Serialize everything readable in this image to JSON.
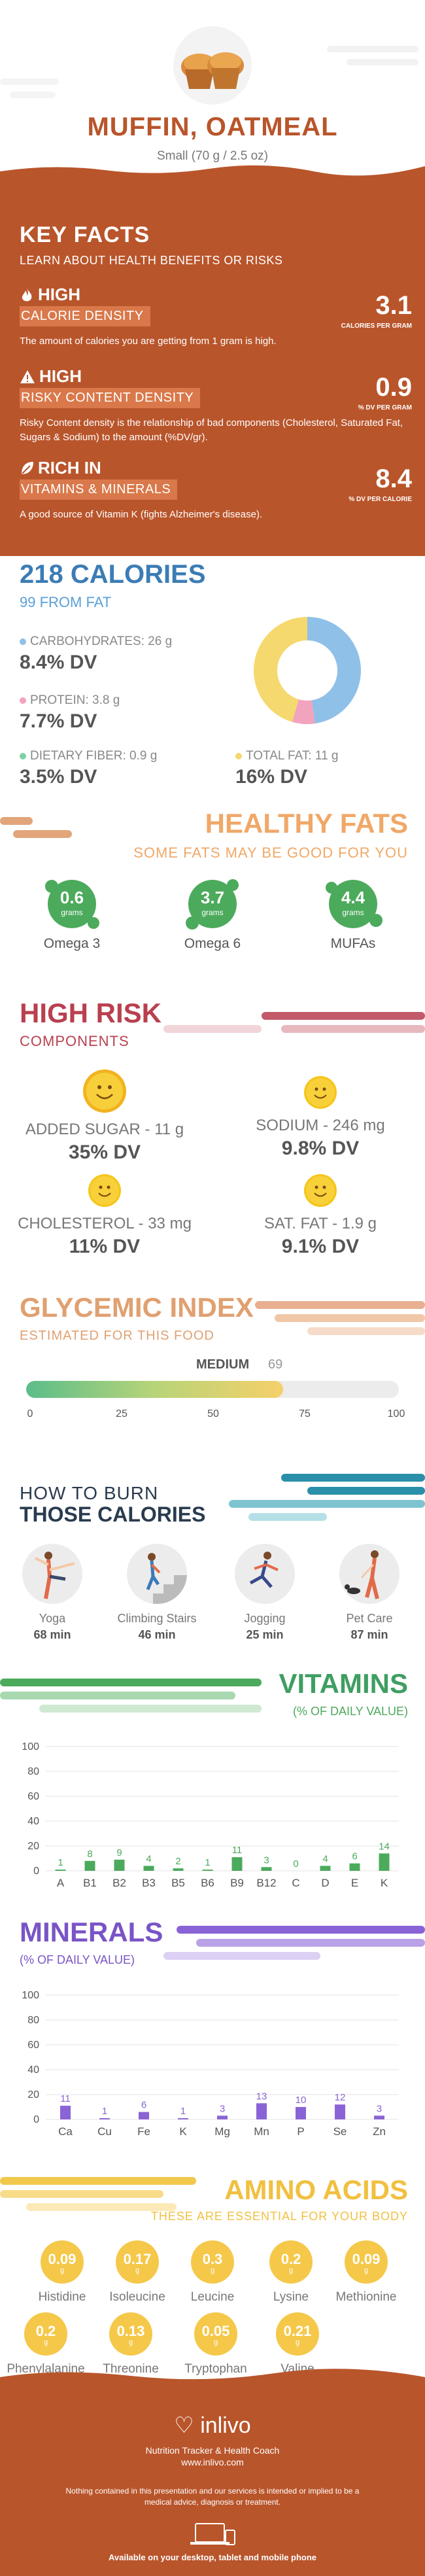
{
  "header": {
    "title": "MUFFIN, OATMEAL",
    "serving": "Small (70 g / 2.5 oz)",
    "image_icon": "muffin-image"
  },
  "key_facts": {
    "title": "KEY FACTS",
    "subtitle": "LEARN ABOUT HEALTH BENEFITS OR RISKS",
    "items": [
      {
        "icon": "flame-icon",
        "level": "HIGH",
        "label": "CALORIE DENSITY",
        "value": "3.1",
        "unit": "CALORIES PER GRAM",
        "desc": "The amount of calories you are getting from 1 gram is high."
      },
      {
        "icon": "warning-icon",
        "level": "HIGH",
        "label": "RISKY CONTENT DENSITY",
        "value": "0.9",
        "unit": "% DV PER GRAM",
        "desc": "Risky Content density is the relationship of bad components (Cholesterol, Saturated Fat, Sugars & Sodium) to the amount (%DV/gr)."
      },
      {
        "icon": "leaf-icon",
        "level": "RICH  IN",
        "label": "VITAMINS & MINERALS",
        "value": "8.4",
        "unit": "% DV PER CALORIE",
        "desc": "A good source of Vitamin K (fights Alzheimer's disease)."
      }
    ]
  },
  "calories": {
    "total": "218 CALORIES",
    "from_fat": "99 FROM FAT",
    "nutrients": [
      {
        "label": "CARBOHYDRATES: 26 g",
        "dv": "8.4% DV",
        "color": "#8fc0e8"
      },
      {
        "label": "PROTEIN: 3.8 g",
        "dv": "7.7% DV",
        "color": "#f2a3bd"
      },
      {
        "label": "DIETARY FIBER: 0.9 g",
        "dv": "3.5% DV",
        "color": "#7fd0a5"
      },
      {
        "label": "TOTAL FAT: 11 g",
        "dv": "16% DV",
        "color": "#f5d86e"
      }
    ],
    "donut": [
      {
        "name": "Carbohydrates",
        "value": 104,
        "color": "#8fc0e8"
      },
      {
        "name": "Protein",
        "value": 15,
        "color": "#f2a3bd"
      },
      {
        "name": "Total fat",
        "value": 99,
        "color": "#f5d86e"
      }
    ]
  },
  "healthy_fats": {
    "title": "HEALTHY FATS",
    "subtitle": "SOME FATS MAY BE GOOD FOR YOU",
    "items": [
      {
        "value": "0.6",
        "unit": "grams",
        "name": "Omega 3"
      },
      {
        "value": "3.7",
        "unit": "grams",
        "name": "Omega 6"
      },
      {
        "value": "4.4",
        "unit": "grams",
        "name": "MUFAs"
      }
    ]
  },
  "high_risk": {
    "title": "HIGH RISK",
    "subtitle": "COMPONENTS",
    "items": [
      {
        "label": "ADDED SUGAR - 11 g",
        "dv": "35% DV"
      },
      {
        "label": "SODIUM - 246 mg",
        "dv": "9.8% DV"
      },
      {
        "label": "CHOLESTEROL - 33 mg",
        "dv": "11% DV"
      },
      {
        "label": "SAT. FAT - 1.9 g",
        "dv": "9.1% DV"
      }
    ]
  },
  "glycemic": {
    "title": "GLYCEMIC INDEX",
    "subtitle": "ESTIMATED FOR THIS FOOD",
    "level": "MEDIUM",
    "value": 69,
    "ticks": [
      "0",
      "25",
      "50",
      "75",
      "100"
    ],
    "max": 100
  },
  "burn": {
    "title_line1": "HOW TO BURN",
    "title_line2": "THOSE CALORIES",
    "activities": [
      {
        "name": "Yoga",
        "time": "68 min",
        "icon": "yoga-icon"
      },
      {
        "name": "Climbing Stairs",
        "time": "46 min",
        "icon": "stairs-icon"
      },
      {
        "name": "Jogging",
        "time": "25 min",
        "icon": "jogging-icon"
      },
      {
        "name": "Pet Care",
        "time": "87 min",
        "icon": "pet-care-icon"
      }
    ]
  },
  "vitamins": {
    "title": "VITAMINS",
    "subtitle": "(% OF DAILY VALUE)"
  },
  "minerals": {
    "title": "MINERALS",
    "subtitle": "(% OF DAILY VALUE)"
  },
  "chart_data": [
    {
      "type": "bar",
      "title": "VITAMINS",
      "subtitle": "(% OF DAILY VALUE)",
      "categories": [
        "A",
        "B1",
        "B2",
        "B3",
        "B5",
        "B6",
        "B9",
        "B12",
        "C",
        "D",
        "E",
        "K"
      ],
      "values": [
        1,
        8,
        9,
        4,
        2,
        1,
        11,
        3,
        0,
        4,
        6,
        14
      ],
      "ylim": [
        0,
        100
      ],
      "yticks": [
        0,
        20,
        40,
        60,
        80,
        100
      ],
      "color": "#4caa5c"
    },
    {
      "type": "bar",
      "title": "MINERALS",
      "subtitle": "(% OF DAILY VALUE)",
      "categories": [
        "Ca",
        "Cu",
        "Fe",
        "K",
        "Mg",
        "Mn",
        "P",
        "Se",
        "Zn"
      ],
      "values": [
        11,
        1,
        6,
        1,
        3,
        13,
        10,
        12,
        3
      ],
      "ylim": [
        0,
        100
      ],
      "yticks": [
        0,
        20,
        40,
        60,
        80,
        100
      ],
      "color": "#8a64d6"
    }
  ],
  "amino": {
    "title": "AMINO ACIDS",
    "subtitle": "THESE ARE ESSENTIAL FOR YOUR BODY",
    "items": [
      {
        "value": "0.09",
        "unit": "g",
        "name": "Histidine"
      },
      {
        "value": "0.17",
        "unit": "g",
        "name": "Isoleucine"
      },
      {
        "value": "0.3",
        "unit": "g",
        "name": "Leucine"
      },
      {
        "value": "0.2",
        "unit": "g",
        "name": "Lysine"
      },
      {
        "value": "0.09",
        "unit": "g",
        "name": "Methionine"
      },
      {
        "value": "0.2",
        "unit": "g",
        "name": "Phenylalanine"
      },
      {
        "value": "0.13",
        "unit": "g",
        "name": "Threonine"
      },
      {
        "value": "0.05",
        "unit": "g",
        "name": "Tryptophan"
      },
      {
        "value": "0.21",
        "unit": "g",
        "name": "Valine"
      }
    ]
  },
  "footer": {
    "brand": "inlivo",
    "tagline": "Nutrition Tracker & Health Coach",
    "url": "www.inlivo.com",
    "disclaimer": "Nothing contained in this presentation and our services is intended or implied to be a medical advice, diagnosis or treatment.",
    "availability": "Available on your desktop, tablet and mobile phone"
  }
}
